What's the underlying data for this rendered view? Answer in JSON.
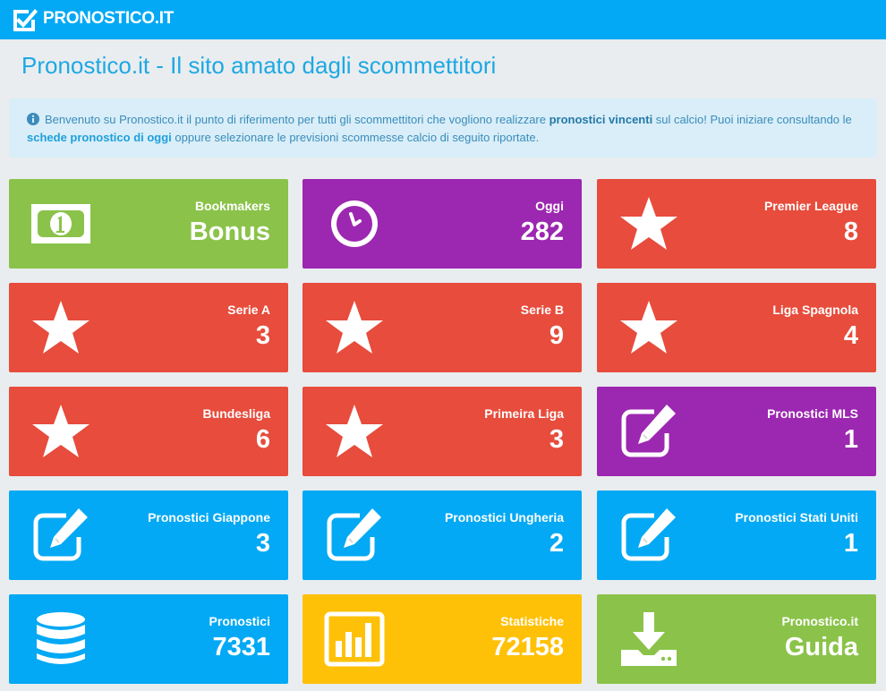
{
  "header": {
    "logo_text": "PRONOSTICO.IT"
  },
  "page_title": "Pronostico.it - Il sito amato dagli scommettitori",
  "info": {
    "part1": "Benvenuto su Pronostico.it il punto di riferimento per tutti gli scommettitori che vogliono realizzare ",
    "link1": "pronostici vincenti",
    "part2": " sul calcio! Puoi iniziare consultando le ",
    "link2": "schede pronostico di oggi",
    "part3": " oppure selezionare le previsioni scommesse calcio di seguito riportate."
  },
  "colors": {
    "green": "#8bc34a",
    "purple": "#9c27b0",
    "red": "#e74c3c",
    "blue": "#03a9f4",
    "yellow": "#ffc107"
  },
  "tiles": [
    {
      "label": "Bookmakers",
      "value": "Bonus",
      "icon": "money-icon",
      "color": "green"
    },
    {
      "label": "Oggi",
      "value": "282",
      "icon": "clock-icon",
      "color": "purple"
    },
    {
      "label": "Premier League",
      "value": "8",
      "icon": "star-icon",
      "color": "red"
    },
    {
      "label": "Serie A",
      "value": "3",
      "icon": "star-icon",
      "color": "red"
    },
    {
      "label": "Serie B",
      "value": "9",
      "icon": "star-icon",
      "color": "red"
    },
    {
      "label": "Liga Spagnola",
      "value": "4",
      "icon": "star-icon",
      "color": "red"
    },
    {
      "label": "Bundesliga",
      "value": "6",
      "icon": "star-icon",
      "color": "red"
    },
    {
      "label": "Primeira Liga",
      "value": "3",
      "icon": "star-icon",
      "color": "red"
    },
    {
      "label": "Pronostici MLS",
      "value": "1",
      "icon": "edit-icon",
      "color": "purple"
    },
    {
      "label": "Pronostici Giappone",
      "value": "3",
      "icon": "edit-icon",
      "color": "blue"
    },
    {
      "label": "Pronostici Ungheria",
      "value": "2",
      "icon": "edit-icon",
      "color": "blue"
    },
    {
      "label": "Pronostici Stati Uniti",
      "value": "1",
      "icon": "edit-icon",
      "color": "blue"
    },
    {
      "label": "Pronostici",
      "value": "7331",
      "icon": "database-icon",
      "color": "blue"
    },
    {
      "label": "Statistiche",
      "value": "72158",
      "icon": "bar-chart-icon",
      "color": "yellow"
    },
    {
      "label": "Pronostico.it",
      "value": "Guida",
      "icon": "download-icon",
      "color": "green"
    }
  ]
}
